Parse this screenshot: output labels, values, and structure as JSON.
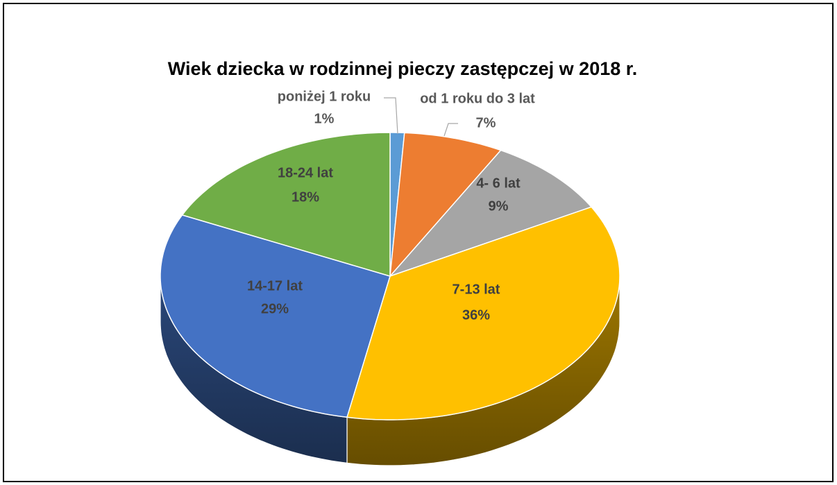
{
  "chart_data": {
    "type": "pie3d",
    "title": "Wiek dziecka w rodzinnej pieczy zastępczej w 2018 r.",
    "categories": [
      "poniżej 1 roku",
      "od 1 roku do 3 lat",
      "4- 6 lat",
      "7-13 lat",
      "14-17 lat",
      "18-24 lat"
    ],
    "values": [
      1,
      7,
      9,
      36,
      29,
      18
    ],
    "value_labels": [
      "1%",
      "7%",
      "9%",
      "36%",
      "29%",
      "18%"
    ],
    "colors": [
      "#5b9bd5",
      "#ed7d31",
      "#a5a5a5",
      "#ffc000",
      "#4472c4",
      "#70ad47"
    ]
  }
}
